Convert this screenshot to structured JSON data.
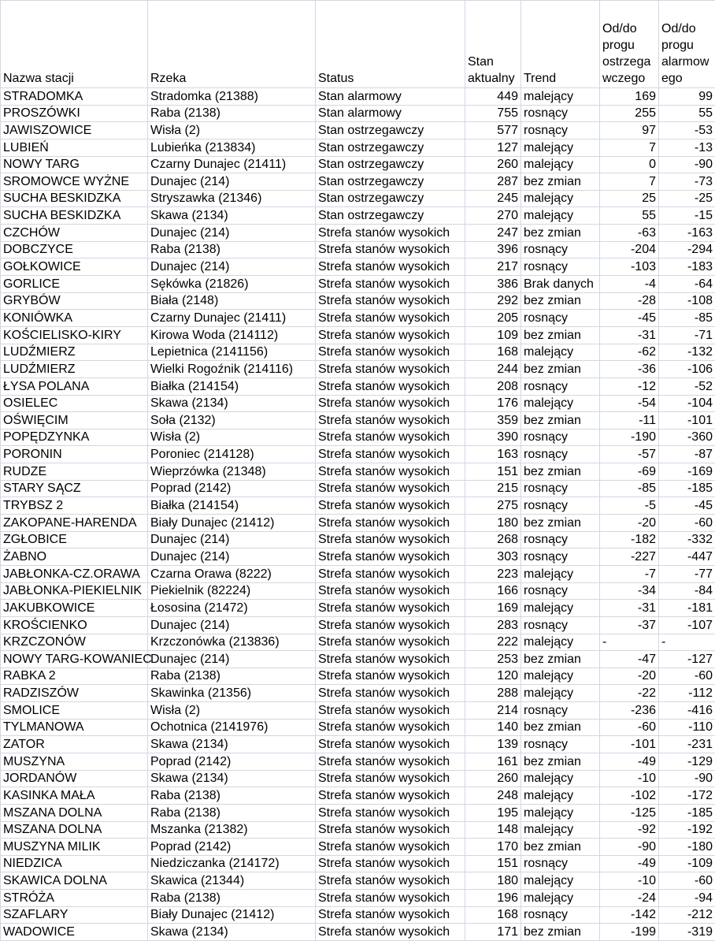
{
  "headers": [
    "Nazwa stacji",
    "Rzeka",
    "Status",
    "Stan aktualny",
    "Trend",
    "Od/do progu ostrzega wczego",
    "Od/do progu alarmow ego"
  ],
  "rows": [
    [
      "STRADOMKA",
      "Stradomka (21388)",
      "Stan alarmowy",
      "449",
      "malejący",
      "169",
      "99"
    ],
    [
      "PROSZÓWKI",
      "Raba (2138)",
      "Stan alarmowy",
      "755",
      "rosnący",
      "255",
      "55"
    ],
    [
      "JAWISZOWICE",
      "Wisła (2)",
      "Stan ostrzegawczy",
      "577",
      "rosnący",
      "97",
      "-53"
    ],
    [
      "LUBIEŃ",
      "Lubieńka (213834)",
      "Stan ostrzegawczy",
      "127",
      "malejący",
      "7",
      "-13"
    ],
    [
      "NOWY TARG",
      "Czarny Dunajec (21411)",
      "Stan ostrzegawczy",
      "260",
      "malejący",
      "0",
      "-90"
    ],
    [
      "SROMOWCE WYŻNE",
      "Dunajec (214)",
      "Stan ostrzegawczy",
      "287",
      "bez zmian",
      "7",
      "-73"
    ],
    [
      "SUCHA BESKIDZKA",
      "Stryszawka (21346)",
      "Stan ostrzegawczy",
      "245",
      "malejący",
      "25",
      "-25"
    ],
    [
      "SUCHA BESKIDZKA",
      "Skawa (2134)",
      "Stan ostrzegawczy",
      "270",
      "malejący",
      "55",
      "-15"
    ],
    [
      "CZCHÓW",
      "Dunajec (214)",
      "Strefa stanów wysokich",
      "247",
      "bez zmian",
      "-63",
      "-163"
    ],
    [
      "DOBCZYCE",
      "Raba (2138)",
      "Strefa stanów wysokich",
      "396",
      "rosnący",
      "-204",
      "-294"
    ],
    [
      "GOŁKOWICE",
      "Dunajec (214)",
      "Strefa stanów wysokich",
      "217",
      "rosnący",
      "-103",
      "-183"
    ],
    [
      "GORLICE",
      "Sękówka (21826)",
      "Strefa stanów wysokich",
      "386",
      "Brak danych",
      "-4",
      "-64"
    ],
    [
      "GRYBÓW",
      "Biała (2148)",
      "Strefa stanów wysokich",
      "292",
      "bez zmian",
      "-28",
      "-108"
    ],
    [
      "KONIÓWKA",
      "Czarny Dunajec (21411)",
      "Strefa stanów wysokich",
      "205",
      "rosnący",
      "-45",
      "-85"
    ],
    [
      "KOŚCIELISKO-KIRY",
      "Kirowa Woda (214112)",
      "Strefa stanów wysokich",
      "109",
      "bez zmian",
      "-31",
      "-71"
    ],
    [
      "LUDŹMIERZ",
      "Lepietnica (2141156)",
      "Strefa stanów wysokich",
      "168",
      "malejący",
      "-62",
      "-132"
    ],
    [
      "LUDŹMIERZ",
      "Wielki Rogoźnik (214116)",
      "Strefa stanów wysokich",
      "244",
      "bez zmian",
      "-36",
      "-106"
    ],
    [
      "ŁYSA POLANA",
      "Białka (214154)",
      "Strefa stanów wysokich",
      "208",
      "rosnący",
      "-12",
      "-52"
    ],
    [
      "OSIELEC",
      "Skawa (2134)",
      "Strefa stanów wysokich",
      "176",
      "malejący",
      "-54",
      "-104"
    ],
    [
      "OŚWIĘCIM",
      "Soła (2132)",
      "Strefa stanów wysokich",
      "359",
      "bez zmian",
      "-11",
      "-101"
    ],
    [
      "POPĘDZYNKA",
      "Wisła (2)",
      "Strefa stanów wysokich",
      "390",
      "rosnący",
      "-190",
      "-360"
    ],
    [
      "PORONIN",
      "Poroniec (214128)",
      "Strefa stanów wysokich",
      "163",
      "rosnący",
      "-57",
      "-87"
    ],
    [
      "RUDZE",
      "Wieprzówka (21348)",
      "Strefa stanów wysokich",
      "151",
      "bez zmian",
      "-69",
      "-169"
    ],
    [
      "STARY SĄCZ",
      "Poprad (2142)",
      "Strefa stanów wysokich",
      "215",
      "rosnący",
      "-85",
      "-185"
    ],
    [
      "TRYBSZ 2",
      "Białka (214154)",
      "Strefa stanów wysokich",
      "275",
      "rosnący",
      "-5",
      "-45"
    ],
    [
      "ZAKOPANE-HARENDA",
      "Biały Dunajec (21412)",
      "Strefa stanów wysokich",
      "180",
      "bez zmian",
      "-20",
      "-60"
    ],
    [
      "ZGŁOBICE",
      "Dunajec (214)",
      "Strefa stanów wysokich",
      "268",
      "rosnący",
      "-182",
      "-332"
    ],
    [
      "ŻABNO",
      "Dunajec (214)",
      "Strefa stanów wysokich",
      "303",
      "rosnący",
      "-227",
      "-447"
    ],
    [
      "JABŁONKA-CZ.ORAWA",
      "Czarna Orawa (8222)",
      "Strefa stanów wysokich",
      "223",
      "malejący",
      "-7",
      "-77"
    ],
    [
      "JABŁONKA-PIEKIELNIK",
      "Piekielnik (82224)",
      "Strefa stanów wysokich",
      "166",
      "rosnący",
      "-34",
      "-84"
    ],
    [
      "JAKUBKOWICE",
      "Łososina (21472)",
      "Strefa stanów wysokich",
      "169",
      "malejący",
      "-31",
      "-181"
    ],
    [
      "KROŚCIENKO",
      "Dunajec (214)",
      "Strefa stanów wysokich",
      "283",
      "rosnący",
      "-37",
      "-107"
    ],
    [
      "KRZCZONÓW",
      "Krzczonówka (213836)",
      "Strefa stanów wysokich",
      "222",
      "malejący",
      "-",
      "-"
    ],
    [
      "NOWY TARG-KOWANIEC",
      "Dunajec (214)",
      "Strefa stanów wysokich",
      "253",
      "bez zmian",
      "-47",
      "-127"
    ],
    [
      "RABKA 2",
      "Raba (2138)",
      "Strefa stanów wysokich",
      "120",
      "malejący",
      "-20",
      "-60"
    ],
    [
      "RADZISZÓW",
      "Skawinka (21356)",
      "Strefa stanów wysokich",
      "288",
      "malejący",
      "-22",
      "-112"
    ],
    [
      "SMOLICE",
      "Wisła (2)",
      "Strefa stanów wysokich",
      "214",
      "rosnący",
      "-236",
      "-416"
    ],
    [
      "TYLMANOWA",
      "Ochotnica (2141976)",
      "Strefa stanów wysokich",
      "140",
      "bez zmian",
      "-60",
      "-110"
    ],
    [
      "ZATOR",
      "Skawa (2134)",
      "Strefa stanów wysokich",
      "139",
      "rosnący",
      "-101",
      "-231"
    ],
    [
      "MUSZYNA",
      "Poprad (2142)",
      "Strefa stanów wysokich",
      "161",
      "bez zmian",
      "-49",
      "-129"
    ],
    [
      "JORDANÓW",
      "Skawa (2134)",
      "Strefa stanów wysokich",
      "260",
      "malejący",
      "-10",
      "-90"
    ],
    [
      "KASINKA MAŁA",
      "Raba (2138)",
      "Strefa stanów wysokich",
      "248",
      "malejący",
      "-102",
      "-172"
    ],
    [
      "MSZANA DOLNA",
      "Raba (2138)",
      "Strefa stanów wysokich",
      "195",
      "malejący",
      "-125",
      "-185"
    ],
    [
      "MSZANA DOLNA",
      "Mszanka (21382)",
      "Strefa stanów wysokich",
      "148",
      "malejący",
      "-92",
      "-192"
    ],
    [
      "MUSZYNA MILIK",
      "Poprad (2142)",
      "Strefa stanów wysokich",
      "170",
      "bez zmian",
      "-90",
      "-180"
    ],
    [
      "NIEDZICA",
      "Niedziczanka (214172)",
      "Strefa stanów wysokich",
      "151",
      "rosnący",
      "-49",
      "-109"
    ],
    [
      "SKAWICA DOLNA",
      "Skawica (21344)",
      "Strefa stanów wysokich",
      "180",
      "malejący",
      "-10",
      "-60"
    ],
    [
      "STRÓŻA",
      "Raba (2138)",
      "Strefa stanów wysokich",
      "196",
      "malejący",
      "-24",
      "-94"
    ],
    [
      "SZAFLARY",
      "Biały Dunajec (21412)",
      "Strefa stanów wysokich",
      "168",
      "rosnący",
      "-142",
      "-212"
    ],
    [
      "WADOWICE",
      "Skawa (2134)",
      "Strefa stanów wysokich",
      "171",
      "bez zmian",
      "-199",
      "-319"
    ]
  ]
}
